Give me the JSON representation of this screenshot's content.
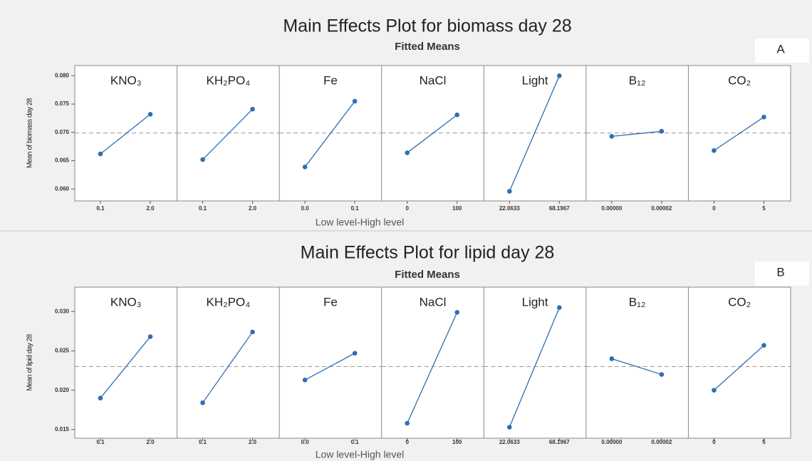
{
  "chart_data": [
    {
      "type": "line",
      "title": "Main Effects Plot for biomass day 28",
      "subtitle": "Fitted Means",
      "y_label": "Mean of biomass day 28",
      "x_label": "Low level-High level",
      "panel_label": "A",
      "color": "#2e6fb0",
      "ylim": [
        0.0579,
        0.0818
      ],
      "yticks": [
        {
          "value": 0.06,
          "label": "0.060"
        },
        {
          "value": 0.065,
          "label": "0.065"
        },
        {
          "value": 0.07,
          "label": "0.070"
        },
        {
          "value": 0.075,
          "label": "0.075"
        },
        {
          "value": 0.08,
          "label": "0.080"
        }
      ],
      "reference": 0.0699,
      "panels": [
        {
          "name": "KNO₃",
          "categories": [
            "0.1",
            "2.0"
          ],
          "values": [
            0.0662,
            0.0732
          ]
        },
        {
          "name": "KH₂PO₄",
          "categories": [
            "0.1",
            "2.0"
          ],
          "values": [
            0.0652,
            0.0741
          ]
        },
        {
          "name": "Fe",
          "categories": [
            "0.0",
            "0.1"
          ],
          "values": [
            0.0639,
            0.0755
          ]
        },
        {
          "name": "NaCl",
          "categories": [
            "0",
            "100"
          ],
          "values": [
            0.0664,
            0.0731
          ]
        },
        {
          "name": "Light",
          "categories": [
            "22.0633",
            "68.1967"
          ],
          "values": [
            0.0596,
            0.08
          ]
        },
        {
          "name": "B₁₂",
          "categories": [
            "0.00000",
            "0.00002"
          ],
          "values": [
            0.0693,
            0.0702
          ]
        },
        {
          "name": "CO₂",
          "categories": [
            "0",
            "5"
          ],
          "values": [
            0.0668,
            0.0727
          ]
        }
      ]
    },
    {
      "type": "line",
      "title": "Main Effects Plot for lipid day 28",
      "subtitle": "Fitted Means",
      "y_label": "Mean of lipid day 28",
      "x_label": "Low level-High level",
      "panel_label": "B",
      "color": "#2e6fb0",
      "ylim": [
        0.0139,
        0.0331
      ],
      "yticks": [
        {
          "value": 0.015,
          "label": "0.015"
        },
        {
          "value": 0.02,
          "label": "0.020"
        },
        {
          "value": 0.025,
          "label": "0.025"
        },
        {
          "value": 0.03,
          "label": "0.030"
        }
      ],
      "reference": 0.023,
      "panels": [
        {
          "name": "KNO₃",
          "categories": [
            "0.1",
            "2.0"
          ],
          "values": [
            0.019,
            0.0268
          ]
        },
        {
          "name": "KH₂PO₄",
          "categories": [
            "0.1",
            "2.0"
          ],
          "values": [
            0.0184,
            0.0274
          ]
        },
        {
          "name": "Fe",
          "categories": [
            "0.0",
            "0.1"
          ],
          "values": [
            0.0213,
            0.0247
          ]
        },
        {
          "name": "NaCl",
          "categories": [
            "0",
            "100"
          ],
          "values": [
            0.0158,
            0.0299
          ]
        },
        {
          "name": "Light",
          "categories": [
            "22.0633",
            "68.1967"
          ],
          "values": [
            0.0153,
            0.0305
          ]
        },
        {
          "name": "B₁₂",
          "categories": [
            "0.00000",
            "0.00002"
          ],
          "values": [
            0.024,
            0.022
          ]
        },
        {
          "name": "CO₂",
          "categories": [
            "0",
            "5"
          ],
          "values": [
            0.02,
            0.0257
          ]
        }
      ]
    }
  ]
}
